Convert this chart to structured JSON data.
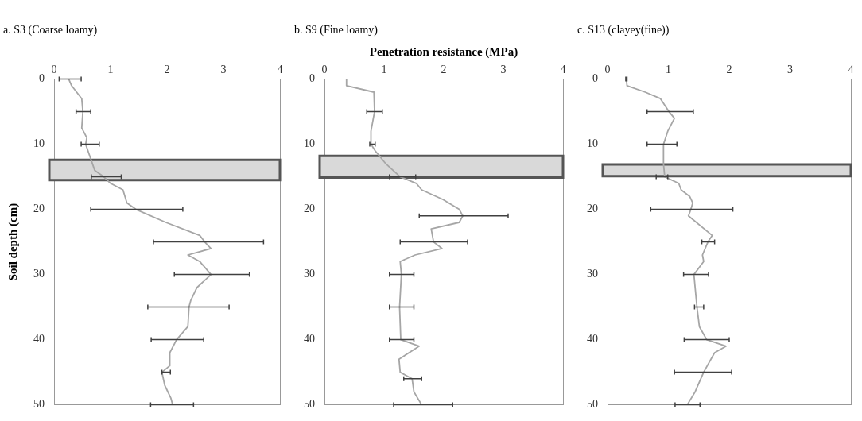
{
  "chart_data": [
    {
      "type": "line",
      "title": "a. S3 (Coarse loamy)",
      "ylabel": "Soil depth (cm)",
      "xlim": [
        0,
        4
      ],
      "xticks": [
        0,
        1,
        2,
        3,
        4
      ],
      "ylim": [
        50,
        0
      ],
      "yticks": [
        0,
        10,
        20,
        30,
        40,
        50
      ],
      "grid": false,
      "bands": [
        {
          "axis": "y",
          "from": 12.4,
          "to": 15.5,
          "color": "#d9d9d9"
        }
      ],
      "series": [
        {
          "color": "#a6a6a6",
          "x": [
            0.26,
            0.31,
            0.49,
            0.51,
            0.49,
            0.58,
            0.56,
            0.64,
            0.72,
            0.88,
            1.0,
            1.22,
            1.29,
            1.45,
            1.98,
            2.58,
            2.67,
            2.72,
            2.78,
            2.37,
            2.58,
            2.78,
            2.53,
            2.42,
            2.39,
            2.37,
            2.17,
            2.05,
            2.05,
            1.91,
            1.96,
            2.07,
            2.1
          ],
          "values": [
            0,
            1,
            3,
            5,
            7.5,
            9,
            10,
            12,
            14,
            15,
            16,
            17,
            19,
            20,
            22,
            24,
            25,
            25.5,
            26,
            27,
            28,
            30,
            32,
            34,
            35,
            38,
            40,
            42,
            44,
            45,
            47,
            49,
            50
          ],
          "xerrors": [
            [
              0.09,
              0.48
            ],
            null,
            null,
            [
              0.39,
              0.65
            ],
            null,
            null,
            [
              0.48,
              0.8
            ],
            null,
            null,
            [
              0.66,
              1.19
            ],
            null,
            null,
            null,
            [
              0.65,
              2.28
            ],
            null,
            null,
            [
              1.76,
              3.71
            ],
            null,
            null,
            null,
            null,
            [
              2.13,
              3.46
            ],
            null,
            null,
            [
              1.66,
              3.1
            ],
            null,
            [
              1.72,
              2.65
            ],
            null,
            null,
            [
              1.91,
              2.06
            ],
            null,
            null,
            [
              1.71,
              2.47
            ]
          ]
        }
      ]
    },
    {
      "type": "line",
      "title": "b. S9 (Fine loamy)",
      "xlabel": "Penetration resistance (MPa)",
      "xlim": [
        0,
        4
      ],
      "xticks": [
        0,
        1,
        2,
        3,
        4
      ],
      "ylim": [
        50,
        0
      ],
      "yticks": [
        0,
        10,
        20,
        30,
        40,
        50
      ],
      "grid": false,
      "bands": [
        {
          "axis": "y",
          "from": 11.8,
          "to": 15.1,
          "color": "#d9d9d9"
        }
      ],
      "series": [
        {
          "color": "#a6a6a6",
          "x": [
            0.37,
            0.37,
            0.83,
            0.84,
            0.78,
            0.78,
            0.85,
            1.03,
            1.27,
            1.54,
            1.63,
            1.99,
            2.26,
            2.32,
            2.26,
            1.79,
            1.83,
            1.97,
            1.52,
            1.27,
            1.29,
            1.26,
            1.28,
            1.59,
            1.25,
            1.27,
            1.47,
            1.5,
            1.63
          ],
          "values": [
            0,
            1,
            2,
            5,
            8,
            10,
            11,
            13,
            15,
            16,
            17,
            18.5,
            20,
            21,
            22,
            23,
            25,
            26,
            27,
            28,
            30,
            35,
            40,
            41,
            43,
            45,
            46,
            48,
            50
          ],
          "xerrors": [
            null,
            null,
            null,
            [
              0.71,
              0.97
            ],
            null,
            [
              0.76,
              0.85
            ],
            null,
            null,
            [
              1.09,
              1.53
            ],
            null,
            null,
            null,
            null,
            [
              1.59,
              3.08
            ],
            null,
            null,
            [
              1.27,
              2.4
            ],
            null,
            null,
            null,
            [
              1.09,
              1.5
            ],
            [
              1.09,
              1.5
            ],
            [
              1.09,
              1.5
            ],
            null,
            null,
            null,
            [
              1.33,
              1.63
            ],
            null,
            [
              1.16,
              2.15
            ]
          ]
        }
      ]
    },
    {
      "type": "line",
      "title": "c. S13 (clayey(fine))",
      "xlim": [
        0,
        4
      ],
      "xticks": [
        0,
        1,
        2,
        3,
        4
      ],
      "ylim": [
        50,
        0
      ],
      "yticks": [
        0,
        10,
        20,
        30,
        40,
        50
      ],
      "grid": false,
      "bands": [
        {
          "axis": "y",
          "from": 13.1,
          "to": 14.9,
          "color": "#d9d9d9"
        }
      ],
      "series": [
        {
          "color": "#a6a6a6",
          "x": [
            0.31,
            0.32,
            0.62,
            0.87,
            1.01,
            1.1,
            0.99,
            0.92,
            0.92,
            0.94,
            1.17,
            1.21,
            1.35,
            1.4,
            1.37,
            1.33,
            1.72,
            1.65,
            1.56,
            1.58,
            1.42,
            1.47,
            1.51,
            1.63,
            1.95,
            1.76,
            1.58,
            1.44,
            1.31
          ],
          "values": [
            0,
            1,
            2,
            3,
            5,
            6,
            8,
            10,
            13,
            15,
            16,
            17,
            18,
            19,
            20,
            21,
            24,
            25,
            27,
            28,
            30,
            35,
            38,
            40,
            41,
            42,
            45,
            48,
            50
          ],
          "xerrors": [
            [
              0.3,
              0.32
            ],
            null,
            null,
            null,
            [
              0.65,
              1.41
            ],
            null,
            null,
            [
              0.65,
              1.14
            ],
            null,
            [
              0.8,
              0.99
            ],
            null,
            null,
            null,
            null,
            [
              0.71,
              2.06
            ],
            null,
            null,
            [
              1.55,
              1.76
            ],
            null,
            null,
            [
              1.25,
              1.66
            ],
            [
              1.43,
              1.58
            ],
            null,
            [
              1.26,
              2.0
            ],
            null,
            null,
            [
              1.1,
              2.04
            ],
            null,
            [
              1.11,
              1.52
            ]
          ]
        }
      ]
    }
  ]
}
